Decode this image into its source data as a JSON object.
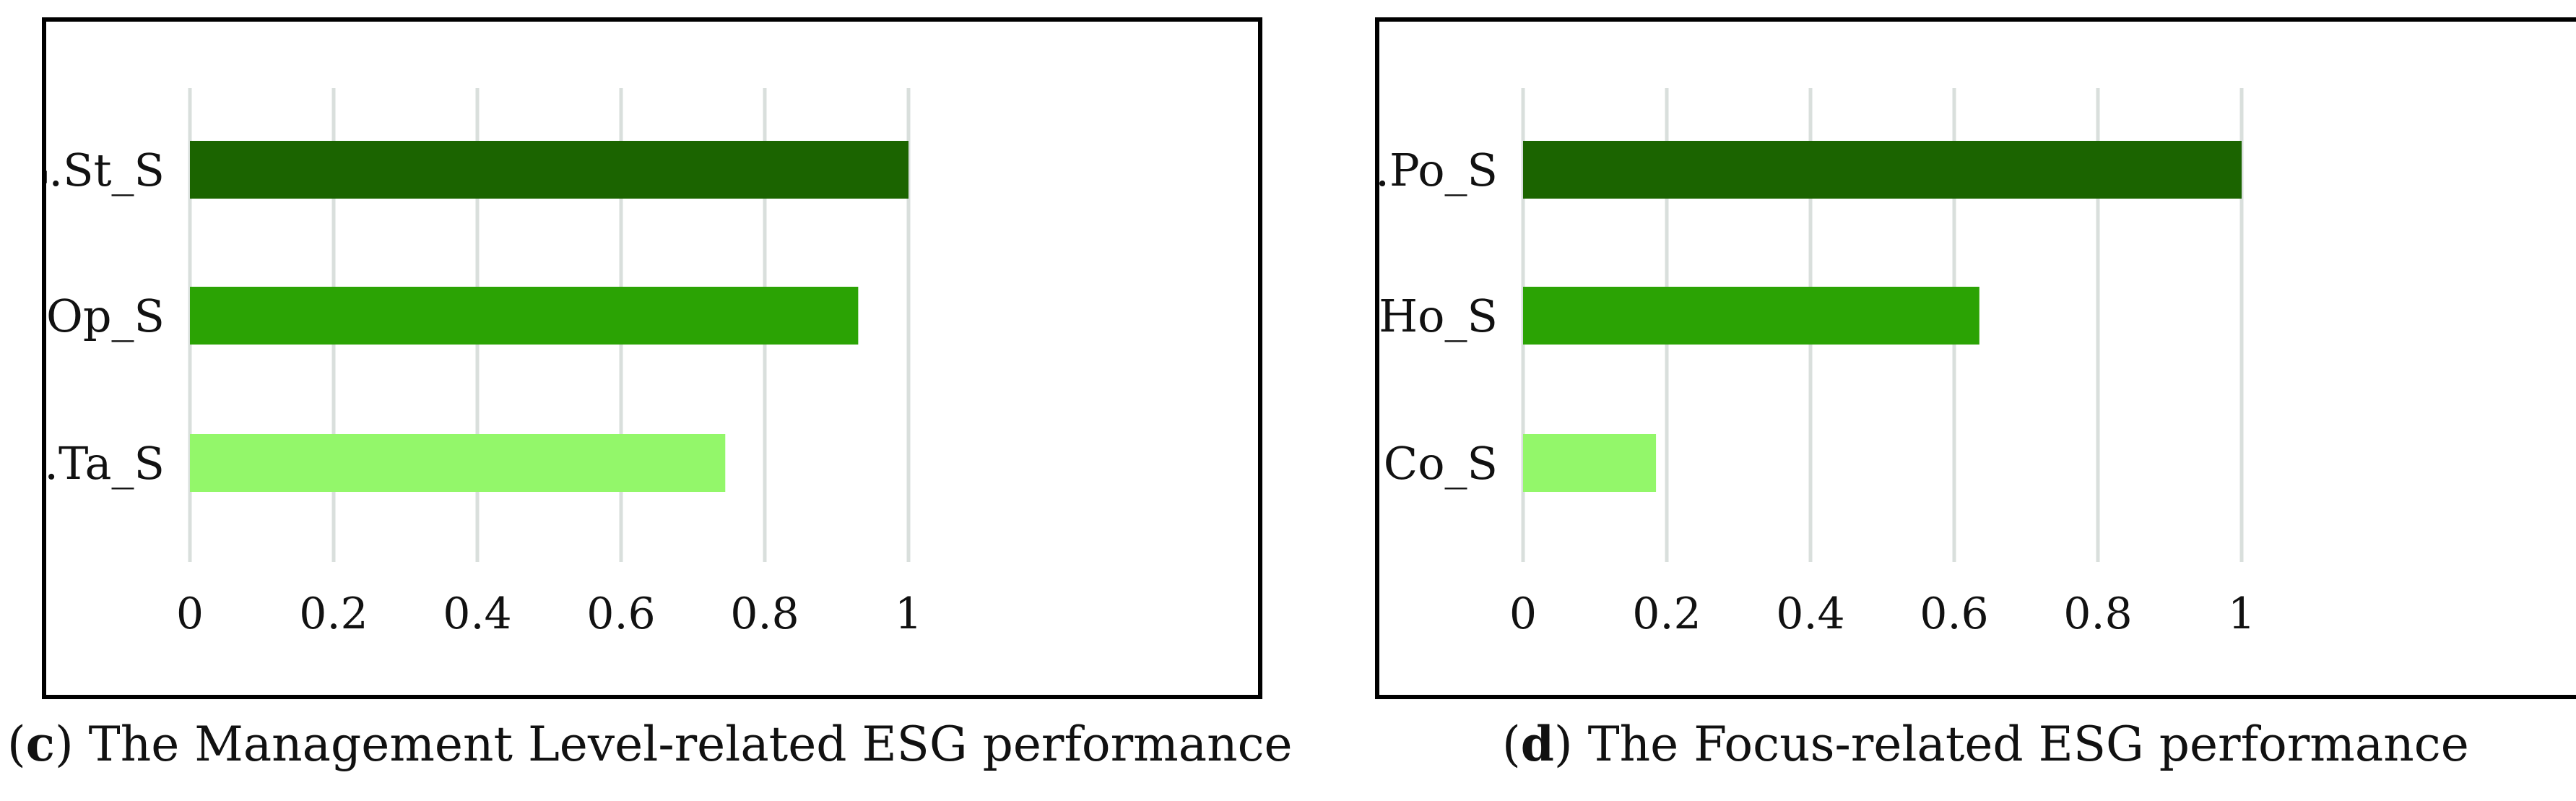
{
  "chart_data": [
    {
      "type": "bar",
      "orientation": "horizontal",
      "categories": [
        "ZESG.St_S",
        "ZESG.Op_S",
        "ZESG.Ta_S"
      ],
      "values": [
        1.0,
        0.93,
        0.745
      ],
      "colors": [
        "#1b6400",
        "#2ba304",
        "#93f76a"
      ],
      "xlim": [
        0,
        1
      ],
      "xticks": [
        "0",
        "0.2",
        "0.4",
        "0.6",
        "0.8",
        "1"
      ],
      "grid": true,
      "caption": {
        "letter": "c",
        "text": " The Management Level-related ESG performance"
      }
    },
    {
      "type": "bar",
      "orientation": "horizontal",
      "categories": [
        "ZESG.Po_S",
        "ZESG.Ho_S",
        "ZESG.Co_S"
      ],
      "values": [
        1.0,
        0.635,
        0.185
      ],
      "colors": [
        "#1b6400",
        "#2ba304",
        "#93f76a"
      ],
      "xlim": [
        0,
        1
      ],
      "xticks": [
        "0",
        "0.2",
        "0.4",
        "0.6",
        "0.8",
        "1"
      ],
      "grid": true,
      "caption": {
        "letter": "d",
        "text": " The Focus-related ESG performance"
      }
    }
  ]
}
